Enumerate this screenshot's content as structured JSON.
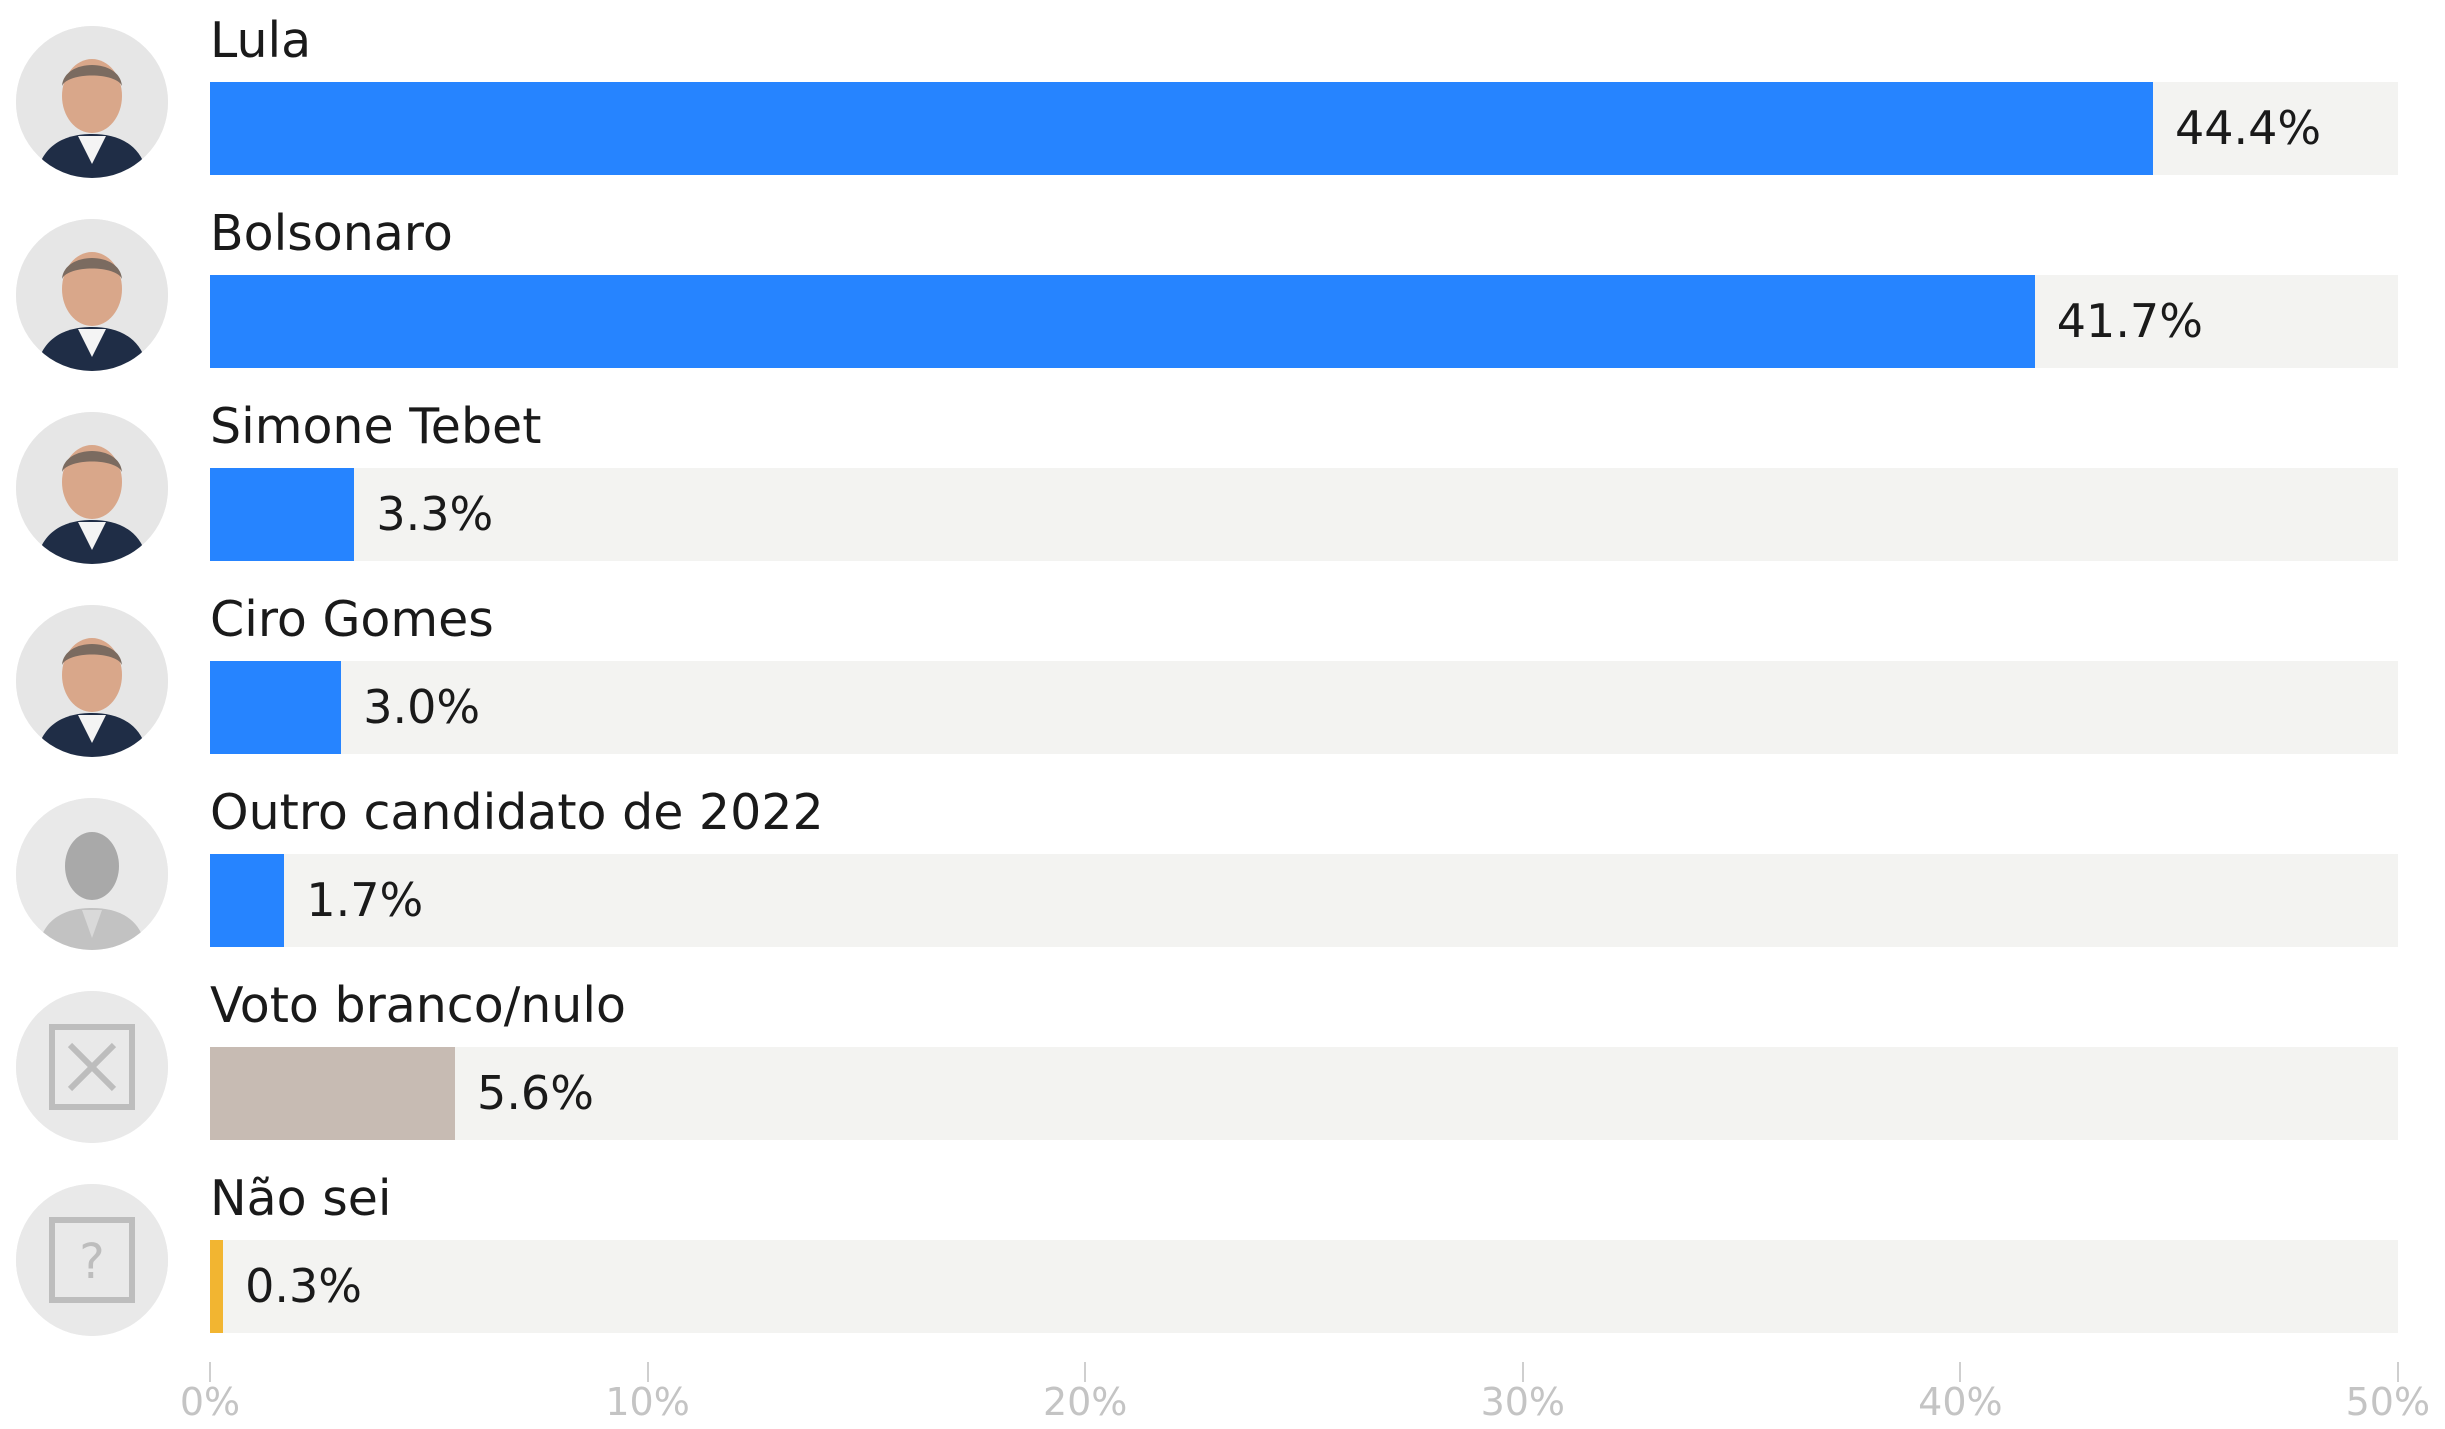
{
  "chart_data": {
    "type": "bar",
    "orientation": "horizontal",
    "categories": [
      "Lula",
      "Bolsonaro",
      "Simone Tebet",
      "Ciro Gomes",
      "Outro candidato de 2022",
      "Voto branco/nulo",
      "Não sei"
    ],
    "values": [
      44.4,
      41.7,
      3.3,
      3.0,
      1.7,
      5.6,
      0.3
    ],
    "value_labels": [
      "44.4%",
      "41.7%",
      "3.3%",
      "3.0%",
      "1.7%",
      "5.6%",
      "0.3%"
    ],
    "bar_colors": [
      "#2684ff",
      "#2684ff",
      "#2684ff",
      "#2684ff",
      "#2684ff",
      "#c7bbb3",
      "#f2b531"
    ],
    "track_color": "#f3f3f1",
    "avatars": [
      "person-photo-icon",
      "person-photo-icon",
      "person-photo-icon",
      "person-photo-icon",
      "person-silhouette-icon",
      "x-box-icon",
      "question-box-icon"
    ],
    "xlim": [
      0,
      50
    ],
    "xticks": [
      0,
      10,
      20,
      30,
      40,
      50
    ],
    "xtick_labels": [
      "0%",
      "10%",
      "20%",
      "30%",
      "40%",
      "50%"
    ],
    "grid": false
  }
}
